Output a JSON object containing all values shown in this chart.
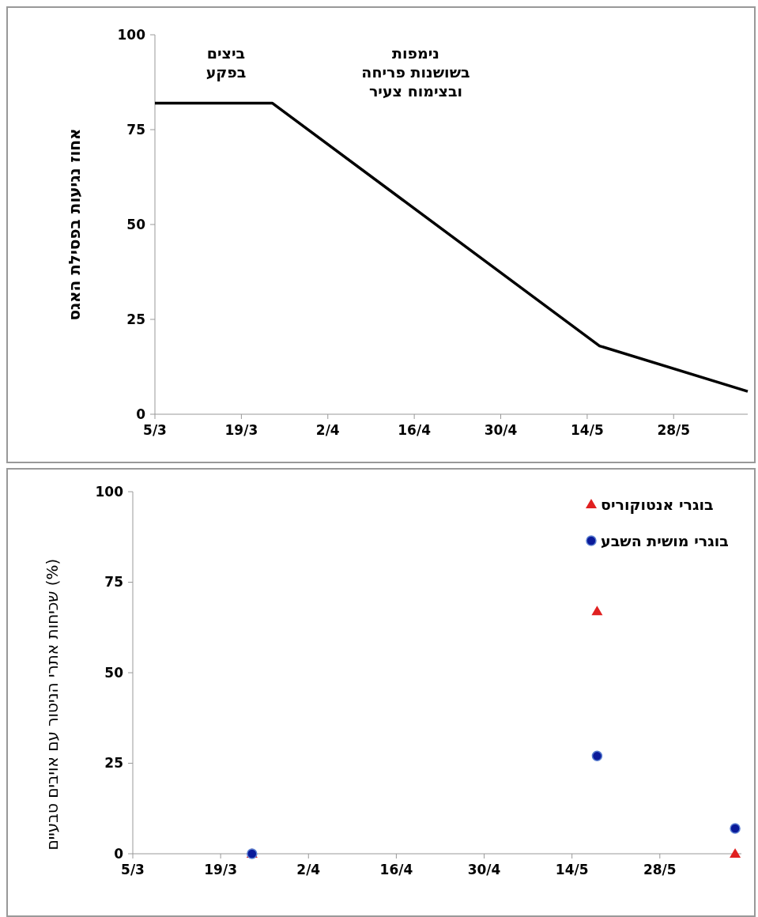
{
  "chart_data": [
    {
      "type": "line",
      "ylabel": "אחוז נגיעות בפסילת האגס",
      "xlim": [
        "--03-05",
        "--06-09"
      ],
      "ylim": [
        0,
        100
      ],
      "yticks": [
        0,
        25,
        50,
        75,
        100
      ],
      "xticks": [
        {
          "value": "--03-05",
          "label": "5/3"
        },
        {
          "value": "--03-19",
          "label": "19/3"
        },
        {
          "value": "--04-02",
          "label": "2/4"
        },
        {
          "value": "--04-16",
          "label": "16/4"
        },
        {
          "value": "--04-30",
          "label": "30/4"
        },
        {
          "value": "--05-14",
          "label": "14/5"
        },
        {
          "value": "--05-28",
          "label": "28/5"
        }
      ],
      "grid": false,
      "legend": false,
      "marker": "none",
      "line_style": "solid",
      "annotations": [
        "ביצים\nבפקע",
        "נימפות\nבשושנות פריחה\nובצימוח צעיר"
      ],
      "series": [
        {
          "color": "#000000",
          "x": [
            "--03-05",
            "--03-24",
            "--05-16",
            "--06-09"
          ],
          "values": [
            82,
            82,
            18,
            6
          ]
        }
      ]
    },
    {
      "type": "scatter",
      "ylabel": "שכיחות אתרי הניטור עם אויבים טבעיים (%)",
      "xlim": [
        "--03-05",
        "--06-10"
      ],
      "ylim": [
        0,
        100
      ],
      "yticks": [
        0,
        25,
        50,
        75,
        100
      ],
      "xticks": [
        {
          "value": "--03-05",
          "label": "5/3"
        },
        {
          "value": "--03-19",
          "label": "19/3"
        },
        {
          "value": "--04-02",
          "label": "2/4"
        },
        {
          "value": "--04-16",
          "label": "16/4"
        },
        {
          "value": "--04-30",
          "label": "30/4"
        },
        {
          "value": "--05-14",
          "label": "14/5"
        },
        {
          "value": "--05-28",
          "label": "28/5"
        }
      ],
      "grid": false,
      "legend": "top right",
      "series": [
        {
          "name": "בוגרי אנטוקוריס",
          "color": "#e02020",
          "marker": "triangle",
          "x": [
            "--03-24",
            "--05-18",
            "--06-09"
          ],
          "values": [
            0,
            67,
            0
          ]
        },
        {
          "name": "בוגרי מושית השבע",
          "color": "#0a1a9a",
          "marker": "circle",
          "x": [
            "--03-24",
            "--05-18",
            "--06-09"
          ],
          "values": [
            0,
            27,
            7
          ]
        }
      ]
    }
  ]
}
